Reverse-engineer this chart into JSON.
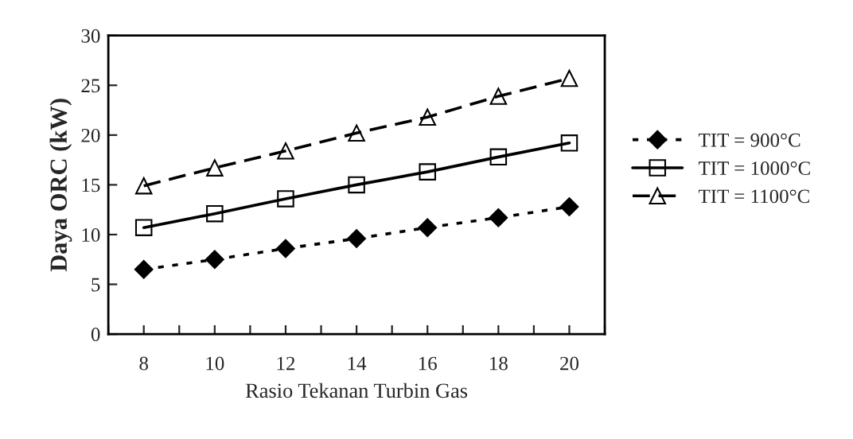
{
  "chart_data": {
    "type": "line",
    "xlabel": "Rasio Tekanan Turbin Gas",
    "ylabel": "Daya ORC (kW)",
    "x": [
      8,
      10,
      12,
      14,
      16,
      18,
      20
    ],
    "series": [
      {
        "name": "TIT = 900°C",
        "color": "#000000",
        "marker": "diamond",
        "line_style": "dotted",
        "values": [
          6.5,
          7.5,
          8.6,
          9.6,
          10.7,
          11.7,
          12.8
        ]
      },
      {
        "name": "TIT = 1000°C",
        "color": "#000000",
        "marker": "square",
        "line_style": "solid",
        "values": [
          10.7,
          12.1,
          13.6,
          15.0,
          16.3,
          17.8,
          19.2
        ]
      },
      {
        "name": "TIT = 1100°C",
        "color": "#000000",
        "marker": "triangle",
        "line_style": "dashed",
        "values": [
          14.9,
          16.7,
          18.4,
          20.2,
          21.8,
          23.9,
          25.7
        ]
      }
    ],
    "xlim": [
      7,
      21
    ],
    "xticks": [
      {
        "value": 7,
        "label": null
      },
      8,
      {
        "value": 9,
        "label": null
      },
      10,
      {
        "value": 11,
        "label": null
      },
      12,
      {
        "value": 13,
        "label": null
      },
      14,
      {
        "value": 15,
        "label": null
      },
      16,
      {
        "value": 17,
        "label": null
      },
      18,
      {
        "value": 19,
        "label": null
      },
      20,
      {
        "value": 21,
        "label": null
      }
    ],
    "ylim": [
      0,
      30
    ],
    "yticks": [
      0,
      5,
      10,
      15,
      20,
      25,
      30
    ],
    "grid": false,
    "legend": "right"
  }
}
